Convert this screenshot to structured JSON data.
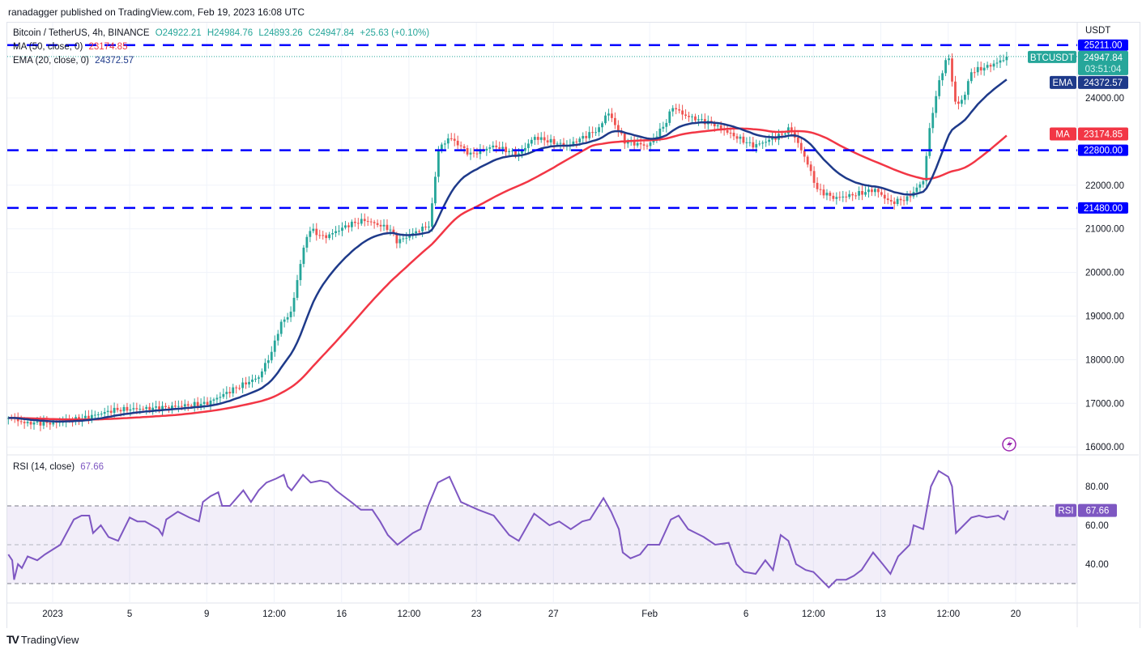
{
  "header": {
    "published": "ranadagger published on TradingView.com, Feb 19, 2023 16:08 UTC"
  },
  "legend": {
    "symbol": "Bitcoin / TetherUS, 4h, BINANCE",
    "open": "O24922.21",
    "high": "H24984.76",
    "low": "L24893.26",
    "close": "C24947.84",
    "change": "+25.63 (+0.10%)",
    "ma_label": "MA (50, close, 0)",
    "ma_value": "23174.85",
    "ema_label": "EMA (20, close, 0)",
    "ema_value": "24372.57",
    "rsi_label": "RSI (14, close)",
    "rsi_value": "67.66"
  },
  "axis": {
    "currency": "USDT",
    "price_ticks": [
      16000,
      17000,
      18000,
      19000,
      20000,
      21000,
      22000,
      24000
    ],
    "rsi_ticks": [
      40,
      60,
      80
    ],
    "time_ticks": [
      {
        "t": 0,
        "label": "2023"
      },
      {
        "t": 4,
        "label": "5"
      },
      {
        "t": 8,
        "label": "9"
      },
      {
        "t": 11.5,
        "label": "12:00"
      },
      {
        "t": 15,
        "label": "16"
      },
      {
        "t": 18.5,
        "label": "12:00"
      },
      {
        "t": 22,
        "label": "23"
      },
      {
        "t": 26,
        "label": "27"
      },
      {
        "t": 31,
        "label": "Feb"
      },
      {
        "t": 36,
        "label": "6"
      },
      {
        "t": 39.5,
        "label": "12:00"
      },
      {
        "t": 43,
        "label": "13"
      },
      {
        "t": 46.5,
        "label": "12:00"
      },
      {
        "t": 50,
        "label": "20"
      }
    ]
  },
  "badges": {
    "symbol": "BTCUSDT",
    "price": "24947.84",
    "countdown": "03:51:04",
    "ema_tag": "EMA",
    "ema_price": "24372.57",
    "ma_tag": "MA",
    "ma_price": "23174.85",
    "rsi_tag": "RSI",
    "rsi_price": "67.66"
  },
  "levels": [
    {
      "value": 25211,
      "label": "25211.00"
    },
    {
      "value": 22800,
      "label": "22800.00"
    },
    {
      "value": 21480,
      "label": "21480.00"
    }
  ],
  "colors": {
    "up": "#26a69a",
    "down": "#ef5350",
    "ema": "#1e3a8a",
    "ma": "#f23645",
    "rsi": "#7e57c2",
    "level": "#0000ff"
  },
  "brand": "TradingView",
  "chart_data": {
    "type": "candlestick",
    "title": "Bitcoin / TetherUS, 4h, BINANCE",
    "x_unit": "days since 2023-01-01",
    "ylim": [
      15800,
      25500
    ],
    "close_keypoints": [
      [
        -2.3,
        16700
      ],
      [
        -1.5,
        16550
      ],
      [
        0,
        16550
      ],
      [
        1.5,
        16650
      ],
      [
        3.2,
        16850
      ],
      [
        5.7,
        16900
      ],
      [
        8,
        17000
      ],
      [
        9.5,
        17350
      ],
      [
        10.7,
        17600
      ],
      [
        11.4,
        18200
      ],
      [
        11.8,
        18800
      ],
      [
        12.4,
        19100
      ],
      [
        12.9,
        20300
      ],
      [
        13.3,
        21000
      ],
      [
        14.1,
        20800
      ],
      [
        15.4,
        21100
      ],
      [
        16.2,
        21200
      ],
      [
        17.5,
        21000
      ],
      [
        17.9,
        20700
      ],
      [
        18.7,
        20900
      ],
      [
        19.6,
        21100
      ],
      [
        20,
        22800
      ],
      [
        20.6,
        23100
      ],
      [
        21.7,
        22700
      ],
      [
        22.9,
        22900
      ],
      [
        24.2,
        22700
      ],
      [
        25,
        23100
      ],
      [
        26.7,
        22900
      ],
      [
        28.4,
        23300
      ],
      [
        28.8,
        23700
      ],
      [
        29.7,
        23000
      ],
      [
        30.9,
        22900
      ],
      [
        31.8,
        23400
      ],
      [
        32.2,
        23800
      ],
      [
        32.8,
        23600
      ],
      [
        34.3,
        23400
      ],
      [
        35.5,
        23100
      ],
      [
        36.4,
        22900
      ],
      [
        37.6,
        23100
      ],
      [
        38.3,
        23300
      ],
      [
        39.1,
        22600
      ],
      [
        39.7,
        21900
      ],
      [
        40.6,
        21700
      ],
      [
        41.8,
        21800
      ],
      [
        42.7,
        21900
      ],
      [
        43.5,
        21600
      ],
      [
        44.4,
        21700
      ],
      [
        45.2,
        22100
      ],
      [
        45.6,
        23500
      ],
      [
        46.1,
        24500
      ],
      [
        46.5,
        25000
      ],
      [
        46.9,
        23800
      ],
      [
        47.3,
        24000
      ],
      [
        47.7,
        24600
      ],
      [
        48.4,
        24700
      ],
      [
        49,
        24800
      ],
      [
        49.6,
        24947.84
      ]
    ],
    "indicators": {
      "ma_period": 50,
      "ema_period": 20,
      "ma_last": 23174.85,
      "ema_last": 24372.57
    },
    "rsi": {
      "period": 14,
      "ylim": [
        20,
        95
      ],
      "bands": [
        30,
        50,
        70
      ],
      "keypoints": [
        [
          -2.3,
          45
        ],
        [
          -2.1,
          42
        ],
        [
          -2.0,
          32
        ],
        [
          -1.8,
          40
        ],
        [
          -1.6,
          38
        ],
        [
          -1.3,
          44
        ],
        [
          -0.8,
          42
        ],
        [
          -0.4,
          45
        ],
        [
          0.4,
          50
        ],
        [
          1.1,
          63
        ],
        [
          1.5,
          65
        ],
        [
          1.9,
          65
        ],
        [
          2.1,
          56
        ],
        [
          2.5,
          60
        ],
        [
          2.9,
          54
        ],
        [
          3.4,
          52
        ],
        [
          4.0,
          64
        ],
        [
          4.4,
          62
        ],
        [
          4.8,
          62
        ],
        [
          5.5,
          58
        ],
        [
          5.7,
          55
        ],
        [
          5.9,
          63
        ],
        [
          6.5,
          67
        ],
        [
          7.1,
          64
        ],
        [
          7.6,
          62
        ],
        [
          7.8,
          72
        ],
        [
          8.2,
          75
        ],
        [
          8.6,
          77
        ],
        [
          8.8,
          70
        ],
        [
          9.2,
          70
        ],
        [
          9.9,
          78
        ],
        [
          10.3,
          72
        ],
        [
          10.7,
          78
        ],
        [
          11.1,
          82
        ],
        [
          11.6,
          84
        ],
        [
          12.0,
          86
        ],
        [
          12.2,
          80
        ],
        [
          12.4,
          78
        ],
        [
          13.0,
          86
        ],
        [
          13.4,
          82
        ],
        [
          13.9,
          83
        ],
        [
          14.3,
          82
        ],
        [
          14.7,
          78
        ],
        [
          15.1,
          75
        ],
        [
          15.5,
          72
        ],
        [
          16.0,
          68
        ],
        [
          16.6,
          68
        ],
        [
          17.0,
          62
        ],
        [
          17.4,
          55
        ],
        [
          17.9,
          50
        ],
        [
          18.3,
          53
        ],
        [
          18.7,
          56
        ],
        [
          19.1,
          58
        ],
        [
          19.5,
          70
        ],
        [
          20.0,
          82
        ],
        [
          20.6,
          85
        ],
        [
          21.2,
          72
        ],
        [
          22.1,
          68
        ],
        [
          22.9,
          65
        ],
        [
          23.7,
          55
        ],
        [
          24.2,
          52
        ],
        [
          25.0,
          66
        ],
        [
          25.8,
          60
        ],
        [
          26.3,
          62
        ],
        [
          26.9,
          58
        ],
        [
          27.5,
          62
        ],
        [
          27.9,
          63
        ],
        [
          28.6,
          74
        ],
        [
          29.0,
          67
        ],
        [
          29.4,
          58
        ],
        [
          29.6,
          46
        ],
        [
          30.0,
          43
        ],
        [
          30.5,
          45
        ],
        [
          30.9,
          50
        ],
        [
          31.5,
          50
        ],
        [
          32.1,
          63
        ],
        [
          32.5,
          65
        ],
        [
          33.0,
          58
        ],
        [
          33.4,
          56
        ],
        [
          33.8,
          54
        ],
        [
          34.4,
          50
        ],
        [
          35.1,
          51
        ],
        [
          35.5,
          40
        ],
        [
          35.9,
          36
        ],
        [
          36.5,
          35
        ],
        [
          37.0,
          42
        ],
        [
          37.4,
          37
        ],
        [
          37.8,
          55
        ],
        [
          38.2,
          52
        ],
        [
          38.6,
          40
        ],
        [
          39.1,
          37
        ],
        [
          39.5,
          36
        ],
        [
          39.9,
          32
        ],
        [
          40.3,
          28
        ],
        [
          40.7,
          32
        ],
        [
          41.2,
          32
        ],
        [
          41.6,
          34
        ],
        [
          42.0,
          37
        ],
        [
          42.6,
          46
        ],
        [
          43.1,
          40
        ],
        [
          43.5,
          35
        ],
        [
          43.9,
          44
        ],
        [
          44.5,
          50
        ],
        [
          44.7,
          60
        ],
        [
          45.2,
          58
        ],
        [
          45.6,
          80
        ],
        [
          46.0,
          88
        ],
        [
          46.5,
          85
        ],
        [
          46.7,
          80
        ],
        [
          46.9,
          56
        ],
        [
          47.3,
          60
        ],
        [
          47.7,
          64
        ],
        [
          48.1,
          65
        ],
        [
          48.5,
          64
        ],
        [
          49.1,
          65
        ],
        [
          49.4,
          63
        ],
        [
          49.6,
          67.66
        ]
      ]
    }
  }
}
